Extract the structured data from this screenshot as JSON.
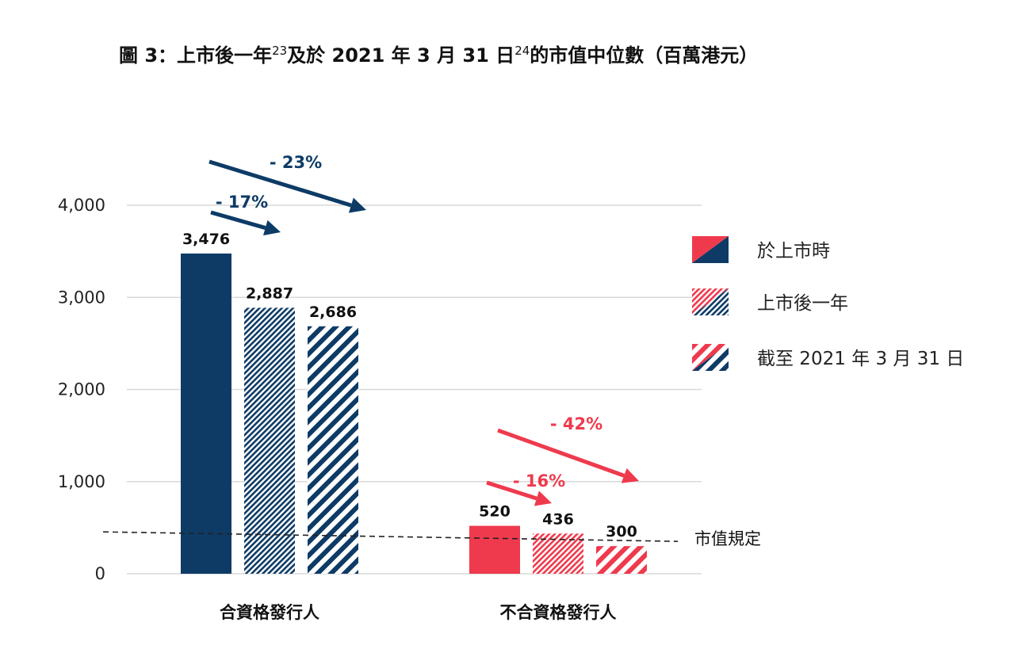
{
  "title": {
    "part1": "圖 3：上市後一年",
    "sup1": "23",
    "part2": "及於 2021 年 3 月 31 日",
    "sup2": "24",
    "part3": "的市值中位數（百萬港元）"
  },
  "colors": {
    "navy": "#0d3b66",
    "red": "#ef3a4d",
    "grid": "#d9d9d9"
  },
  "chart_data": {
    "type": "bar",
    "categories": [
      "合資格發行人",
      "不合資格發行人"
    ],
    "series": [
      {
        "name": "於上市時",
        "values": [
          3476,
          520
        ],
        "labels": [
          "3,476",
          "520"
        ],
        "pattern": "solid"
      },
      {
        "name": "上市後一年",
        "values": [
          2887,
          436
        ],
        "labels": [
          "2,887",
          "436"
        ],
        "pattern": "dense-hatch"
      },
      {
        "name": "截至 2021 年 3 月 31 日",
        "values": [
          2686,
          300
        ],
        "labels": [
          "2,686",
          "300"
        ],
        "pattern": "wide-hatch"
      }
    ],
    "ylim": [
      0,
      4000
    ],
    "yticks": [
      0,
      1000,
      2000,
      3000,
      4000
    ],
    "ytick_labels": [
      "0",
      "1,000",
      "2,000",
      "3,000",
      "4,000"
    ],
    "grid": true,
    "legend_position": "right",
    "reference_line": {
      "label": "市值規定",
      "value": 420,
      "style": "dashed"
    },
    "annotations": [
      {
        "text": "- 23%",
        "category": 0,
        "from_series": 0,
        "to_series": 2
      },
      {
        "text": "- 17%",
        "category": 0,
        "from_series": 0,
        "to_series": 1
      },
      {
        "text": "- 42%",
        "category": 1,
        "from_series": 0,
        "to_series": 2
      },
      {
        "text": "- 16%",
        "category": 1,
        "from_series": 0,
        "to_series": 1
      }
    ]
  }
}
